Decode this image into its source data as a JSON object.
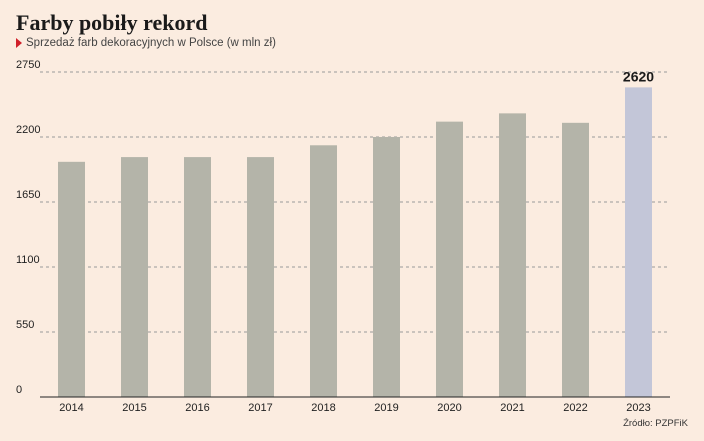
{
  "chart_data": {
    "type": "bar",
    "title": "Farby pobiły rekord",
    "subtitle": "Sprzedaż farb dekoracyjnych w Polsce (w mln zł)",
    "categories": [
      "2014",
      "2015",
      "2016",
      "2017",
      "2018",
      "2019",
      "2020",
      "2021",
      "2022",
      "2023"
    ],
    "values": [
      1990,
      2030,
      2030,
      2030,
      2130,
      2200,
      2330,
      2400,
      2320,
      2620
    ],
    "ylim": [
      0,
      2750
    ],
    "yticks": [
      0,
      550,
      1100,
      1650,
      2200,
      2750
    ],
    "grid": true,
    "callout": {
      "category": "2023",
      "label": "2620"
    },
    "colors": {
      "bar": "#b4b4a9",
      "highlight": "#c3c6d8",
      "grid": "#9a9a9a"
    },
    "highlight_index": 9
  },
  "source": "Źródło: PZPFiK"
}
